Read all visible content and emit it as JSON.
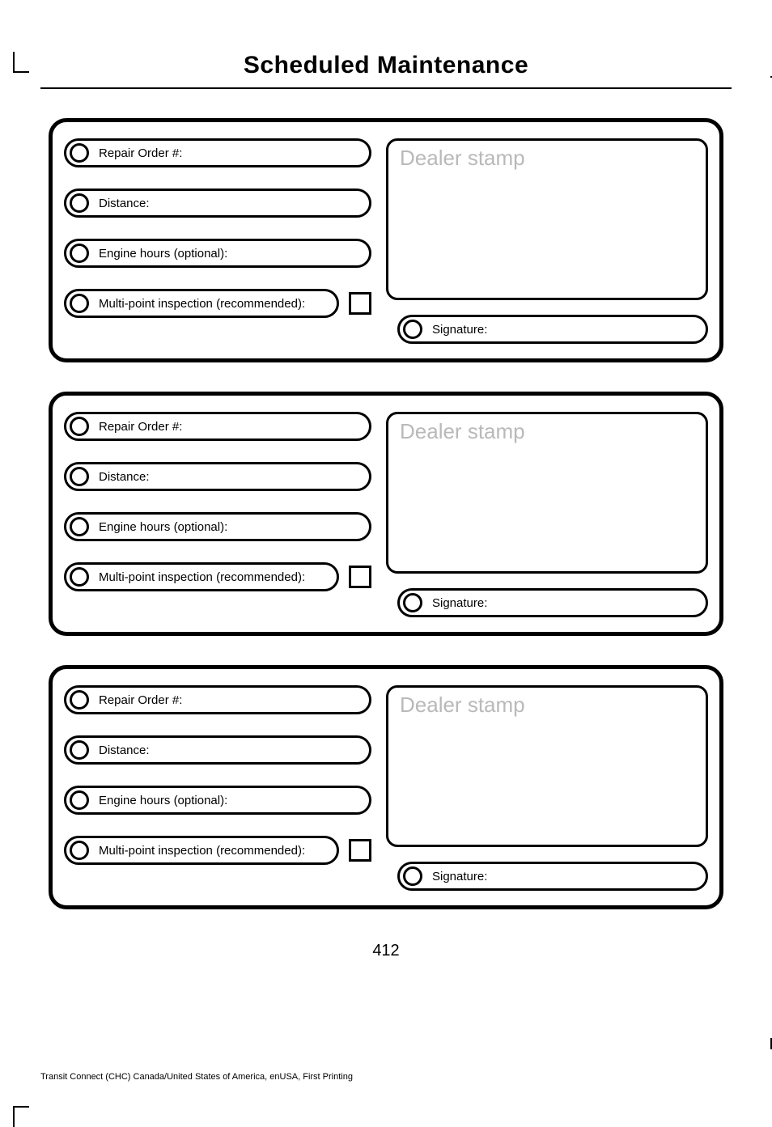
{
  "title": "Scheduled Maintenance",
  "pageNumber": "412",
  "footer": "Transit Connect (CHC) Canada/United States of America, enUSA, First Printing",
  "labels": {
    "repairOrder": "Repair Order #:",
    "distance": "Distance:",
    "engineHours": "Engine hours (optional):",
    "multiPoint": "Multi-point inspection (recommended):",
    "dealerStamp": "Dealer stamp",
    "signature": "Signature:"
  },
  "recordCount": 3,
  "style": {
    "pageWidth": 954,
    "pageHeight": 1329,
    "background": "#ffffff",
    "titleFontSize": 30,
    "titleFontWeight": 900,
    "cardBorderWidth": 5,
    "cardBorderRadius": 22,
    "pillBorderWidth": 3,
    "pillBorderRadius": 20,
    "pillHeight": 36,
    "pillFontSize": 15,
    "bulletSize": 24,
    "bulletBorderWidth": 3,
    "checkboxSize": 28,
    "checkboxBorderWidth": 3,
    "dealerStampFontSize": 26,
    "dealerStampColor": "#b9b9b9",
    "dealerStampBorderRadius": 14,
    "pageNumberFontSize": 20,
    "footerFontSize": 11,
    "ruleColor": "#000000"
  }
}
